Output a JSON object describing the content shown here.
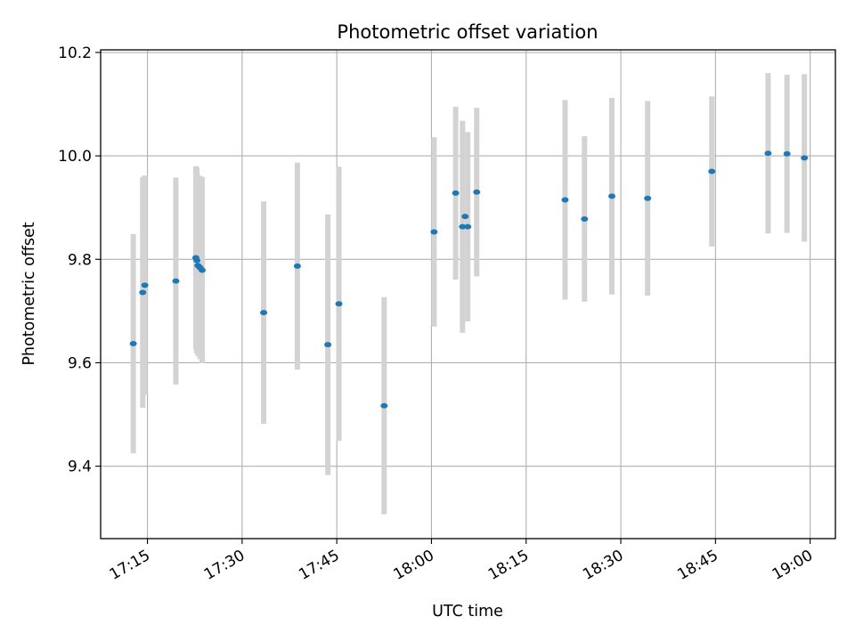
{
  "chart_data": {
    "type": "scatter",
    "title": "Photometric offset variation",
    "xlabel": "UTC time",
    "ylabel": "Photometric offset",
    "x_ticks": [
      "17:15",
      "17:30",
      "17:45",
      "18:00",
      "18:15",
      "18:30",
      "18:45",
      "19:00"
    ],
    "y_ticks": [
      "9.4",
      "9.6",
      "9.8",
      "10.0",
      "10.2"
    ],
    "xlim": [
      "17:07:35",
      "19:04:00"
    ],
    "ylim": [
      9.26,
      10.205
    ],
    "grid": true,
    "marker_color": "#1f77b4",
    "errorbar_color": "#d3d3d3",
    "points": [
      {
        "t": "17:12:45",
        "y": 9.637,
        "err": 0.212
      },
      {
        "t": "17:14:15",
        "y": 9.736,
        "err": 0.223
      },
      {
        "t": "17:14:35",
        "y": 9.75,
        "err": 0.212
      },
      {
        "t": "17:19:30",
        "y": 9.758,
        "err": 0.2
      },
      {
        "t": "17:22:40",
        "y": 9.803,
        "err": 0.177
      },
      {
        "t": "17:22:50",
        "y": 9.798,
        "err": 0.18
      },
      {
        "t": "17:23:00",
        "y": 9.788,
        "err": 0.175
      },
      {
        "t": "17:23:20",
        "y": 9.784,
        "err": 0.177
      },
      {
        "t": "17:23:40",
        "y": 9.779,
        "err": 0.18
      },
      {
        "t": "17:33:25",
        "y": 9.697,
        "err": 0.215
      },
      {
        "t": "17:38:45",
        "y": 9.787,
        "err": 0.2
      },
      {
        "t": "17:43:35",
        "y": 9.635,
        "err": 0.252
      },
      {
        "t": "17:45:20",
        "y": 9.714,
        "err": 0.265
      },
      {
        "t": "17:52:30",
        "y": 9.517,
        "err": 0.21
      },
      {
        "t": "18:00:25",
        "y": 9.853,
        "err": 0.183
      },
      {
        "t": "18:03:50",
        "y": 9.928,
        "err": 0.167
      },
      {
        "t": "18:04:55",
        "y": 9.863,
        "err": 0.205
      },
      {
        "t": "18:05:20",
        "y": 9.883,
        "err": 0.0
      },
      {
        "t": "18:05:45",
        "y": 9.863,
        "err": 0.183
      },
      {
        "t": "18:07:10",
        "y": 9.93,
        "err": 0.163
      },
      {
        "t": "18:21:10",
        "y": 9.915,
        "err": 0.193
      },
      {
        "t": "18:24:15",
        "y": 9.878,
        "err": 0.16
      },
      {
        "t": "18:28:35",
        "y": 9.922,
        "err": 0.19
      },
      {
        "t": "18:34:15",
        "y": 9.918,
        "err": 0.188
      },
      {
        "t": "18:44:25",
        "y": 9.97,
        "err": 0.145
      },
      {
        "t": "18:53:20",
        "y": 10.005,
        "err": 0.155
      },
      {
        "t": "18:56:20",
        "y": 10.004,
        "err": 0.153
      },
      {
        "t": "18:59:05",
        "y": 9.996,
        "err": 0.162
      }
    ]
  }
}
